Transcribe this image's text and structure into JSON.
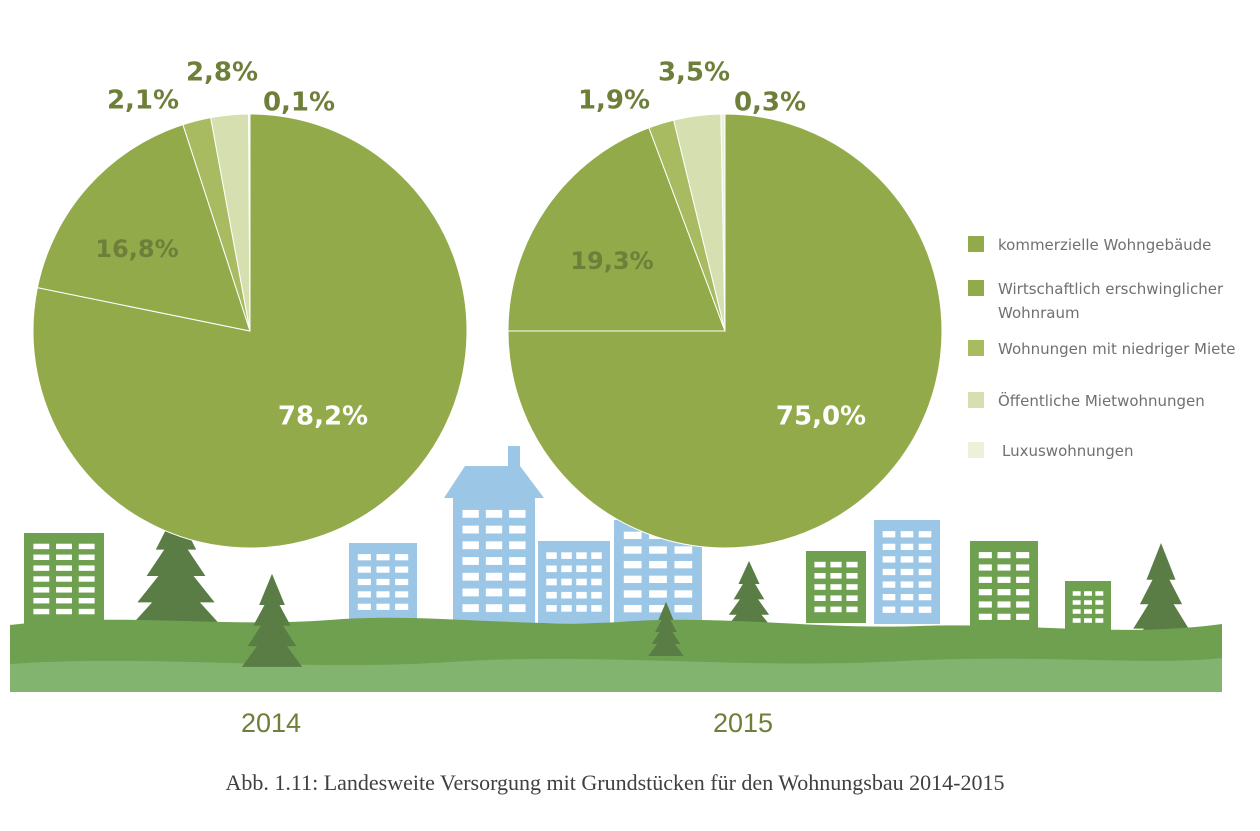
{
  "colors": {
    "kommerziell": "#93aa4a",
    "wirtschaftlich": "#93aa4a",
    "niedrige_miete": "#a8bb60",
    "oeffentlich": "#d5dfb0",
    "luxus": "#ecf1dc",
    "label_outer": "#6d7f39",
    "label_inner_white": "#ffffff",
    "label_inner_dark": "#6d7f39",
    "building_blue": "#9bc6e6",
    "building_green": "#6ea050",
    "tree": "#5a7d45",
    "hill_dark": "#6ea050",
    "hill_light": "#82b470",
    "year": "#6d7f39",
    "caption": "#404040"
  },
  "chart_data": [
    {
      "type": "pie",
      "title": "2014",
      "slices": [
        {
          "name": "kommerzielle Wohngebäude",
          "value": 78.2,
          "label": "78,2%"
        },
        {
          "name": "Wirtschaftlich erschwinglicher Wohnraum",
          "value": 16.8,
          "label": "16,8%"
        },
        {
          "name": "Wohnungen mit niedriger Miete",
          "value": 2.1,
          "label": "2,1%"
        },
        {
          "name": "Öffentliche Mietwohnungen",
          "value": 2.8,
          "label": "2,8%"
        },
        {
          "name": "Luxuswohnungen",
          "value": 0.1,
          "label": "0,1%"
        }
      ]
    },
    {
      "type": "pie",
      "title": "2015",
      "slices": [
        {
          "name": "kommerzielle Wohngebäude",
          "value": 75.0,
          "label": "75,0%"
        },
        {
          "name": "Wirtschaftlich erschwinglicher Wohnraum",
          "value": 19.3,
          "label": "19,3%"
        },
        {
          "name": "Wohnungen mit niedriger Miete",
          "value": 1.9,
          "label": "1,9%"
        },
        {
          "name": "Öffentliche Mietwohnungen",
          "value": 3.5,
          "label": "3,5%"
        },
        {
          "name": "Luxuswohnungen",
          "value": 0.3,
          "label": "0,3%"
        }
      ]
    }
  ],
  "legend": [
    {
      "label": "kommerzielle Wohngebäude",
      "color": "#93aa4a"
    },
    {
      "label": "Wirtschaftlich erschwinglicher Wohnraum",
      "color": "#93aa4a"
    },
    {
      "label": "Wohnungen mit niedriger Miete",
      "color": "#a8bb60"
    },
    {
      "label": "Öffentliche Mietwohnungen",
      "color": "#d5dfb0"
    },
    {
      "label": "Luxuswohnungen",
      "color": "#ecf1dc"
    }
  ],
  "years": [
    "2014",
    "2015"
  ],
  "caption": "Abb. 1.11: Landesweite Versorgung mit Grundstücken für den Wohnungsbau 2014-2015"
}
